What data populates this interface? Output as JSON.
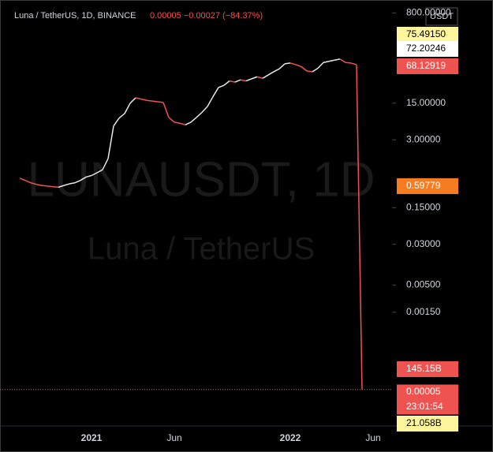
{
  "chart_data": {
    "type": "line",
    "title": "Luna / TetherUS, 1D, BINANCE",
    "quote": "0.00005 −0.00027 (−84.37%)",
    "watermark": "LUNAUSDT, 1D",
    "watermark_sub": "Luna / TetherUS",
    "unit": "USDT",
    "log_scale": true,
    "up_color": "#e8e8e8",
    "down_color": "#ef5350",
    "ylim": [
      1e-05,
      1000
    ],
    "yticks": [
      {
        "value": 800,
        "label": "800.00000"
      },
      {
        "value": 15,
        "label": "15.00000"
      },
      {
        "value": 3,
        "label": "3.00000"
      },
      {
        "value": 0.15,
        "label": "0.15000"
      },
      {
        "value": 0.03,
        "label": "0.03000"
      },
      {
        "value": 0.005,
        "label": "0.00500"
      },
      {
        "value": 0.0015,
        "label": "0.00150"
      }
    ],
    "categories": [
      null,
      null,
      null,
      null,
      null,
      null,
      null,
      null,
      null,
      null,
      null,
      null,
      null,
      "2021",
      null,
      null,
      null,
      null,
      null,
      null,
      null,
      null,
      null,
      null,
      null,
      null,
      null,
      null,
      "Jun",
      null,
      null,
      null,
      null,
      null,
      null,
      null,
      null,
      null,
      null,
      null,
      null,
      null,
      null,
      null,
      null,
      null,
      null,
      null,
      null,
      "2022",
      null,
      null,
      null,
      null,
      null,
      null,
      null,
      null,
      null,
      null,
      null,
      null,
      null,
      null,
      "Jun"
    ],
    "values": [
      0.55,
      0.5,
      0.45,
      0.42,
      0.4,
      0.39,
      0.38,
      0.37,
      0.4,
      0.43,
      0.45,
      0.5,
      0.58,
      0.62,
      0.7,
      0.8,
      1.3,
      5.5,
      7.8,
      9.5,
      15,
      19,
      18,
      17,
      16.5,
      16,
      15.5,
      8,
      6.5,
      6.2,
      5.8,
      6.5,
      8,
      10,
      13,
      20,
      30,
      33,
      40,
      38,
      42,
      40,
      44,
      48,
      45,
      52,
      60,
      68,
      85,
      88,
      82,
      75,
      62,
      60,
      70,
      90,
      95,
      100,
      105,
      90,
      88,
      82,
      5e-05,
      null,
      null
    ],
    "price_tags": [
      {
        "label": "75.49150",
        "bg": "#fff59d",
        "fg": "#000000"
      },
      {
        "label": "72.20246",
        "bg": "#ffffff",
        "fg": "#000000"
      },
      {
        "label": "68.12919",
        "bg": "#ef5350",
        "fg": "#ffffff"
      },
      {
        "label": "0.59779",
        "bg": "#f57c1f",
        "fg": "#ffffff"
      },
      {
        "label": "145.15B",
        "bg": "#ef5350",
        "fg": "#ffffff"
      },
      {
        "label": "0.00005",
        "bg": "#ef5350",
        "fg": "#ffffff"
      },
      {
        "label": "23:01:54",
        "bg": "#ef5350",
        "fg": "#ffffff"
      },
      {
        "label": "21.058B",
        "bg": "#fff59d",
        "fg": "#000000"
      }
    ]
  }
}
